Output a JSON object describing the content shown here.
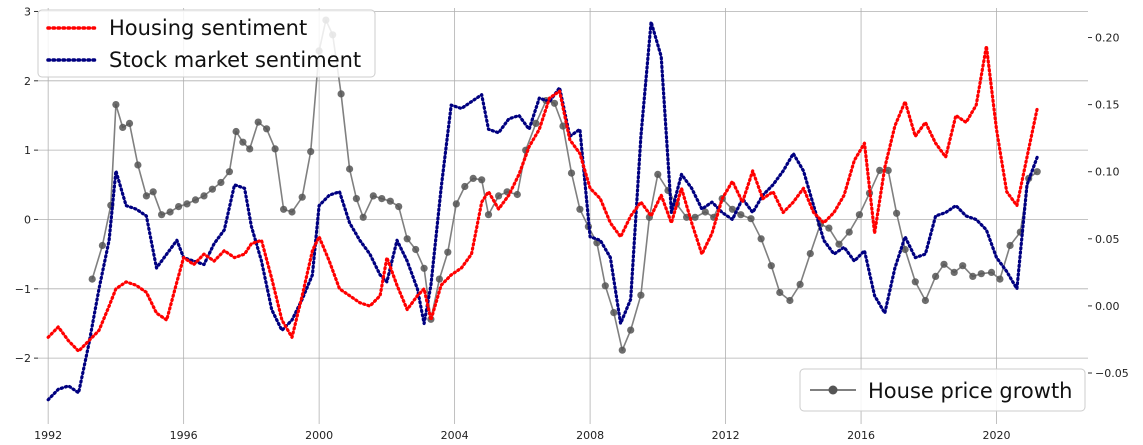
{
  "chart_data": {
    "type": "line",
    "title": "",
    "xlabel": "",
    "ylabel": "",
    "y2label": "",
    "xlim": [
      1991.7,
      2022.7
    ],
    "ylim": [
      -2.95,
      3.05
    ],
    "y2lim": [
      -0.088,
      0.222
    ],
    "x_ticks": [
      1992,
      1996,
      2000,
      2004,
      2008,
      2012,
      2016,
      2020
    ],
    "x_tick_labels": [
      "1992",
      "1996",
      "2000",
      "2004",
      "2008",
      "2012",
      "2016",
      "2020"
    ],
    "y_ticks": [
      -2,
      -1,
      0,
      1,
      2,
      3
    ],
    "y_tick_labels": [
      "−2",
      "−1",
      "0",
      "1",
      "2",
      "3"
    ],
    "y2_ticks": [
      -0.05,
      0.0,
      0.05,
      0.1,
      0.15,
      0.2
    ],
    "y2_tick_labels": [
      "−0.05",
      "0.00",
      "0.05",
      "0.10",
      "0.15",
      "0.20"
    ],
    "grid": true,
    "legend_left": {
      "placement": "upper-left",
      "entries": [
        "Housing sentiment",
        "Stock market sentiment"
      ]
    },
    "legend_right": {
      "placement": "lower-right",
      "entries": [
        "House price growth"
      ]
    },
    "colors": {
      "housing": "#ff0000",
      "stock": "#000080",
      "house_price": "#808080",
      "marker": "#555555"
    },
    "series": [
      {
        "name": "Housing sentiment",
        "axis": "left",
        "style": "dotted",
        "x": [
          1992.0,
          1992.3,
          1992.6,
          1992.9,
          1993.2,
          1993.5,
          1993.8,
          1994.0,
          1994.3,
          1994.6,
          1994.9,
          1995.2,
          1995.5,
          1995.8,
          1996.0,
          1996.3,
          1996.6,
          1996.9,
          1997.2,
          1997.5,
          1997.8,
          1998.0,
          1998.3,
          1998.6,
          1998.9,
          1999.2,
          1999.5,
          1999.8,
          2000.0,
          2000.3,
          2000.6,
          2000.9,
          2001.2,
          2001.5,
          2001.8,
          2002.0,
          2002.3,
          2002.6,
          2002.9,
          2003.1,
          2003.3,
          2003.6,
          2003.9,
          2004.2,
          2004.5,
          2004.8,
          2005.0,
          2005.3,
          2005.6,
          2005.9,
          2006.2,
          2006.5,
          2006.8,
          2007.1,
          2007.4,
          2007.7,
          2008.0,
          2008.3,
          2008.6,
          2008.9,
          2009.2,
          2009.5,
          2009.8,
          2010.1,
          2010.4,
          2010.7,
          2011.0,
          2011.3,
          2011.6,
          2011.9,
          2012.2,
          2012.5,
          2012.8,
          2013.1,
          2013.4,
          2013.7,
          2014.0,
          2014.3,
          2014.6,
          2014.9,
          2015.2,
          2015.5,
          2015.8,
          2016.1,
          2016.4,
          2016.7,
          2017.0,
          2017.3,
          2017.6,
          2017.9,
          2018.2,
          2018.5,
          2018.8,
          2019.1,
          2019.4,
          2019.7,
          2020.0,
          2020.3,
          2020.6,
          2020.9,
          2021.2
        ],
        "y": [
          -1.7,
          -1.55,
          -1.75,
          -1.9,
          -1.75,
          -1.6,
          -1.25,
          -1.0,
          -0.9,
          -0.95,
          -1.05,
          -1.35,
          -1.45,
          -0.9,
          -0.55,
          -0.65,
          -0.5,
          -0.6,
          -0.45,
          -0.55,
          -0.5,
          -0.35,
          -0.3,
          -0.85,
          -1.45,
          -1.7,
          -1.1,
          -0.45,
          -0.25,
          -0.6,
          -1.0,
          -1.1,
          -1.2,
          -1.25,
          -1.1,
          -0.55,
          -0.95,
          -1.3,
          -1.1,
          -1.0,
          -1.45,
          -0.95,
          -0.8,
          -0.7,
          -0.5,
          0.25,
          0.4,
          0.15,
          0.35,
          0.65,
          1.05,
          1.3,
          1.75,
          1.85,
          1.15,
          0.95,
          0.45,
          0.3,
          -0.05,
          -0.25,
          0.05,
          0.25,
          0.05,
          0.35,
          -0.05,
          0.45,
          -0.05,
          -0.5,
          -0.2,
          0.3,
          0.55,
          0.25,
          0.7,
          0.3,
          0.4,
          0.1,
          0.25,
          0.45,
          0.1,
          -0.05,
          0.1,
          0.35,
          0.85,
          1.1,
          -0.2,
          0.75,
          1.35,
          1.7,
          1.2,
          1.4,
          1.1,
          0.9,
          1.5,
          1.4,
          1.65,
          2.5,
          1.3,
          0.4,
          0.2,
          0.9,
          1.6
        ]
      },
      {
        "name": "Stock market sentiment",
        "axis": "left",
        "style": "dotted",
        "x": [
          1992.0,
          1992.3,
          1992.6,
          1992.9,
          1993.2,
          1993.5,
          1993.8,
          1994.0,
          1994.3,
          1994.6,
          1994.9,
          1995.2,
          1995.5,
          1995.8,
          1996.0,
          1996.3,
          1996.6,
          1996.9,
          1997.2,
          1997.5,
          1997.8,
          1998.0,
          1998.3,
          1998.6,
          1998.9,
          1999.2,
          1999.5,
          1999.8,
          2000.0,
          2000.3,
          2000.6,
          2000.9,
          2001.2,
          2001.5,
          2001.8,
          2002.0,
          2002.3,
          2002.6,
          2002.9,
          2003.1,
          2003.3,
          2003.6,
          2003.9,
          2004.2,
          2004.5,
          2004.8,
          2005.0,
          2005.3,
          2005.6,
          2005.9,
          2006.2,
          2006.5,
          2006.8,
          2007.1,
          2007.4,
          2007.7,
          2008.0,
          2008.3,
          2008.6,
          2008.9,
          2009.2,
          2009.5,
          2009.8,
          2010.1,
          2010.4,
          2010.7,
          2011.0,
          2011.3,
          2011.6,
          2011.9,
          2012.2,
          2012.5,
          2012.8,
          2013.1,
          2013.4,
          2013.7,
          2014.0,
          2014.3,
          2014.6,
          2014.9,
          2015.2,
          2015.5,
          2015.8,
          2016.1,
          2016.4,
          2016.7,
          2017.0,
          2017.3,
          2017.6,
          2017.9,
          2018.2,
          2018.5,
          2018.8,
          2019.1,
          2019.4,
          2019.7,
          2020.0,
          2020.3,
          2020.6,
          2020.9,
          2021.2
        ],
        "y": [
          -2.6,
          -2.45,
          -2.4,
          -2.5,
          -1.8,
          -1.0,
          -0.3,
          0.7,
          0.2,
          0.15,
          0.05,
          -0.7,
          -0.5,
          -0.3,
          -0.55,
          -0.6,
          -0.65,
          -0.35,
          -0.15,
          0.5,
          0.45,
          -0.1,
          -0.6,
          -1.3,
          -1.6,
          -1.45,
          -1.15,
          -0.8,
          0.2,
          0.35,
          0.4,
          -0.05,
          -0.3,
          -0.5,
          -0.8,
          -0.9,
          -0.3,
          -0.6,
          -1.0,
          -1.5,
          -0.95,
          0.45,
          1.65,
          1.6,
          1.7,
          1.8,
          1.3,
          1.25,
          1.45,
          1.5,
          1.3,
          1.75,
          1.7,
          1.9,
          1.2,
          1.3,
          -0.25,
          -0.3,
          -0.55,
          -1.5,
          -1.15,
          1.2,
          2.85,
          2.35,
          0.1,
          0.65,
          0.45,
          0.15,
          0.25,
          0.1,
          0.0,
          0.3,
          0.1,
          0.35,
          0.5,
          0.7,
          0.95,
          0.7,
          0.2,
          -0.3,
          -0.5,
          -0.4,
          -0.6,
          -0.45,
          -1.1,
          -1.35,
          -0.7,
          -0.25,
          -0.55,
          -0.5,
          0.05,
          0.1,
          0.2,
          0.05,
          0.0,
          -0.15,
          -0.55,
          -0.75,
          -1.0,
          0.5,
          0.9
        ]
      },
      {
        "name": "House price growth",
        "axis": "right",
        "style": "solid-markers",
        "x": [
          1993.3,
          1993.6,
          1993.85,
          1994.0,
          1994.2,
          1994.4,
          1994.65,
          1994.9,
          1995.1,
          1995.35,
          1995.6,
          1995.85,
          1996.1,
          1996.35,
          1996.6,
          1996.85,
          1997.1,
          1997.35,
          1997.55,
          1997.75,
          1997.95,
          1998.2,
          1998.45,
          1998.7,
          1998.95,
          1999.2,
          1999.5,
          1999.75,
          2000.0,
          2000.2,
          2000.4,
          2000.65,
          2000.9,
          2001.1,
          2001.3,
          2001.6,
          2001.85,
          2002.1,
          2002.35,
          2002.6,
          2002.85,
          2003.1,
          2003.3,
          2003.55,
          2003.8,
          2004.05,
          2004.3,
          2004.55,
          2004.8,
          2005.0,
          2005.3,
          2005.55,
          2005.85,
          2006.1,
          2006.4,
          2006.7,
          2006.95,
          2007.2,
          2007.45,
          2007.7,
          2007.95,
          2008.2,
          2008.45,
          2008.7,
          2008.95,
          2009.2,
          2009.5,
          2009.75,
          2010.0,
          2010.3,
          2010.55,
          2010.85,
          2011.1,
          2011.4,
          2011.65,
          2011.9,
          2012.2,
          2012.45,
          2012.75,
          2013.05,
          2013.35,
          2013.6,
          2013.9,
          2014.2,
          2014.5,
          2014.8,
          2015.05,
          2015.35,
          2015.65,
          2015.95,
          2016.25,
          2016.55,
          2016.8,
          2017.05,
          2017.3,
          2017.6,
          2017.9,
          2018.2,
          2018.45,
          2018.75,
          2019.0,
          2019.3,
          2019.55,
          2019.85,
          2020.1,
          2020.4,
          2020.7,
          2020.95,
          2021.2
        ],
        "y": [
          0.02,
          0.045,
          0.075,
          0.15,
          0.133,
          0.136,
          0.105,
          0.082,
          0.085,
          0.068,
          0.07,
          0.074,
          0.076,
          0.079,
          0.082,
          0.087,
          0.092,
          0.1,
          0.13,
          0.122,
          0.117,
          0.137,
          0.132,
          0.117,
          0.072,
          0.07,
          0.081,
          0.115,
          0.19,
          0.213,
          0.202,
          0.158,
          0.102,
          0.08,
          0.066,
          0.082,
          0.08,
          0.078,
          0.074,
          0.05,
          0.042,
          0.028,
          -0.01,
          0.02,
          0.04,
          0.076,
          0.089,
          0.095,
          0.094,
          0.068,
          0.082,
          0.085,
          0.083,
          0.116,
          0.136,
          0.153,
          0.151,
          0.134,
          0.099,
          0.072,
          0.059,
          0.047,
          0.015,
          -0.005,
          -0.033,
          -0.018,
          0.008,
          0.066,
          0.098,
          0.086,
          0.076,
          0.066,
          0.066,
          0.07,
          0.066,
          0.08,
          0.072,
          0.068,
          0.065,
          0.05,
          0.03,
          0.01,
          0.004,
          0.016,
          0.039,
          0.061,
          0.058,
          0.046,
          0.055,
          0.068,
          0.084,
          0.101,
          0.101,
          0.069,
          0.042,
          0.018,
          0.004,
          0.022,
          0.031,
          0.025,
          0.03,
          0.022,
          0.024,
          0.025,
          0.02,
          0.045,
          0.055,
          0.095,
          0.1
        ]
      }
    ]
  }
}
